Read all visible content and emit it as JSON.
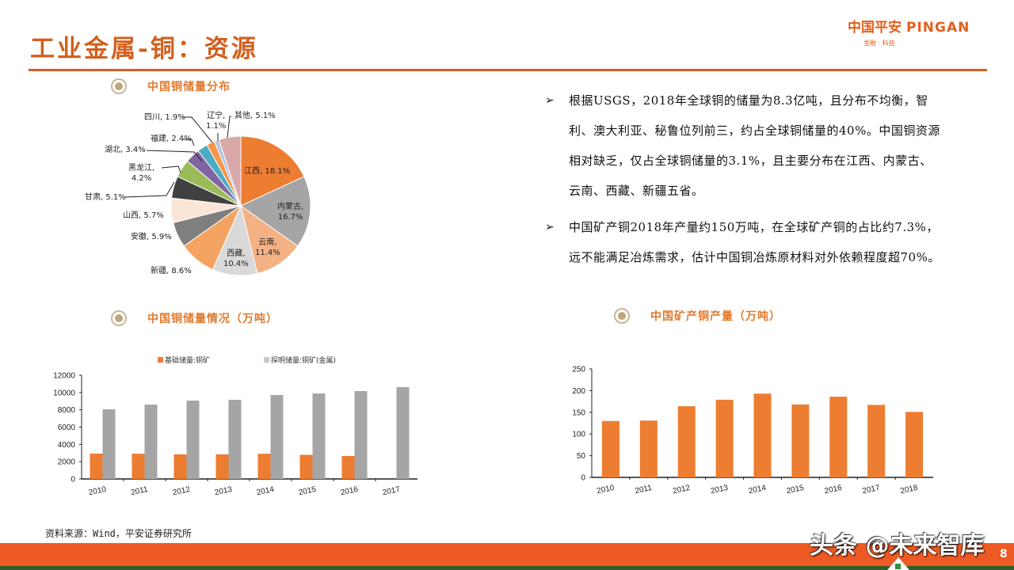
{
  "header": {
    "title": "工业金属-铜：资源",
    "logo_cn": "中国平安",
    "logo_en": "PINGAN",
    "logo_tagline": "金融 · 科技",
    "accent_color": "#D2601E"
  },
  "sections": {
    "pie_title": "中国铜储量分布",
    "reserves_title": "中国铜储量情况（万吨）",
    "production_title": "中国矿产铜产量（万吨）"
  },
  "bullets": [
    {
      "icon": "arrow-right-icon",
      "text": "根据USGS，2018年全球铜的储量为8.3亿吨，且分布不均衡，智利、澳大利亚、秘鲁位列前三，约占全球铜储量的40%。中国铜资源相对缺乏，仅占全球铜储量的3.1%，且主要分布在江西、内蒙古、云南、西藏、新疆五省。"
    },
    {
      "icon": "arrow-right-icon",
      "text": "中国矿产铜2018年产量约150万吨，在全球矿产铜的占比约7.3%，远不能满足冶炼需求，估计中国铜冶炼原材料对外依赖程度超70%。"
    }
  ],
  "chart_data": [
    {
      "type": "pie",
      "title": "中国铜储量分布",
      "categories": [
        "江西",
        "内蒙古",
        "云南",
        "西藏",
        "新疆",
        "安徽",
        "山西",
        "甘肃",
        "黑龙江",
        "湖北",
        "福建",
        "四川",
        "辽宁",
        "其他"
      ],
      "values": [
        18.1,
        16.7,
        11.4,
        10.4,
        8.6,
        5.9,
        5.7,
        5.1,
        4.2,
        3.4,
        2.4,
        1.9,
        1.1,
        5.1
      ],
      "labels": [
        "江西, 18.1%",
        "内蒙古, 16.7%",
        "云南, 11.4%",
        "西藏, 10.4%",
        "新疆, 8.6%",
        "安徽, 5.9%",
        "山西, 5.7%",
        "甘肃, 5.1%",
        "黑龙江, 4.2%",
        "湖北, 3.4%",
        "福建, 2.4%",
        "四川, 1.9%",
        "辽宁, 1.1%",
        "其他, 5.1%"
      ],
      "colors": [
        "#ED7D31",
        "#A5A5A5",
        "#F4B183",
        "#D9D9D9",
        "#F4A460",
        "#7F7F7F",
        "#FBE5D6",
        "#404040",
        "#9BBB59",
        "#8064A2",
        "#4BACC6",
        "#F79646",
        "#B4C6E7",
        "#D9A9A9"
      ]
    },
    {
      "type": "bar",
      "title": "中国铜储量情况（万吨）",
      "categories": [
        "2010",
        "2011",
        "2012",
        "2013",
        "2014",
        "2015",
        "2016",
        "2017"
      ],
      "series": [
        {
          "name": "基础储量:铜矿",
          "color": "#ED7D31",
          "values": [
            2930,
            2920,
            2840,
            2850,
            2920,
            2790,
            2660,
            null
          ]
        },
        {
          "name": "探明储量:铜矿(金属)",
          "color": "#A5A5A5",
          "values": [
            8060,
            8600,
            9070,
            9160,
            9710,
            9890,
            10170,
            10630
          ]
        }
      ],
      "ylim": [
        0,
        12000
      ],
      "yticks": [
        "12000",
        "10000",
        "8000",
        "6000",
        "4000",
        "2000",
        "0"
      ],
      "xlabel": "",
      "ylabel": "",
      "legend_position": "top"
    },
    {
      "type": "bar",
      "title": "中国矿产铜产量（万吨）",
      "categories": [
        "2010",
        "2011",
        "2012",
        "2013",
        "2014",
        "2015",
        "2016",
        "2017",
        "2018"
      ],
      "series": [
        {
          "name": "矿产铜产量",
          "color": "#ED7D31",
          "values": [
            130,
            131,
            164,
            179,
            193,
            168,
            186,
            167,
            151
          ]
        }
      ],
      "ylim": [
        0,
        250
      ],
      "yticks": [
        "250",
        "200",
        "150",
        "100",
        "50",
        "0"
      ],
      "xlabel": "",
      "ylabel": ""
    }
  ],
  "footer": {
    "source": "资料来源：Wind，平安证券研究所",
    "watermark": "头条 @未来智库",
    "page_number": "8"
  }
}
